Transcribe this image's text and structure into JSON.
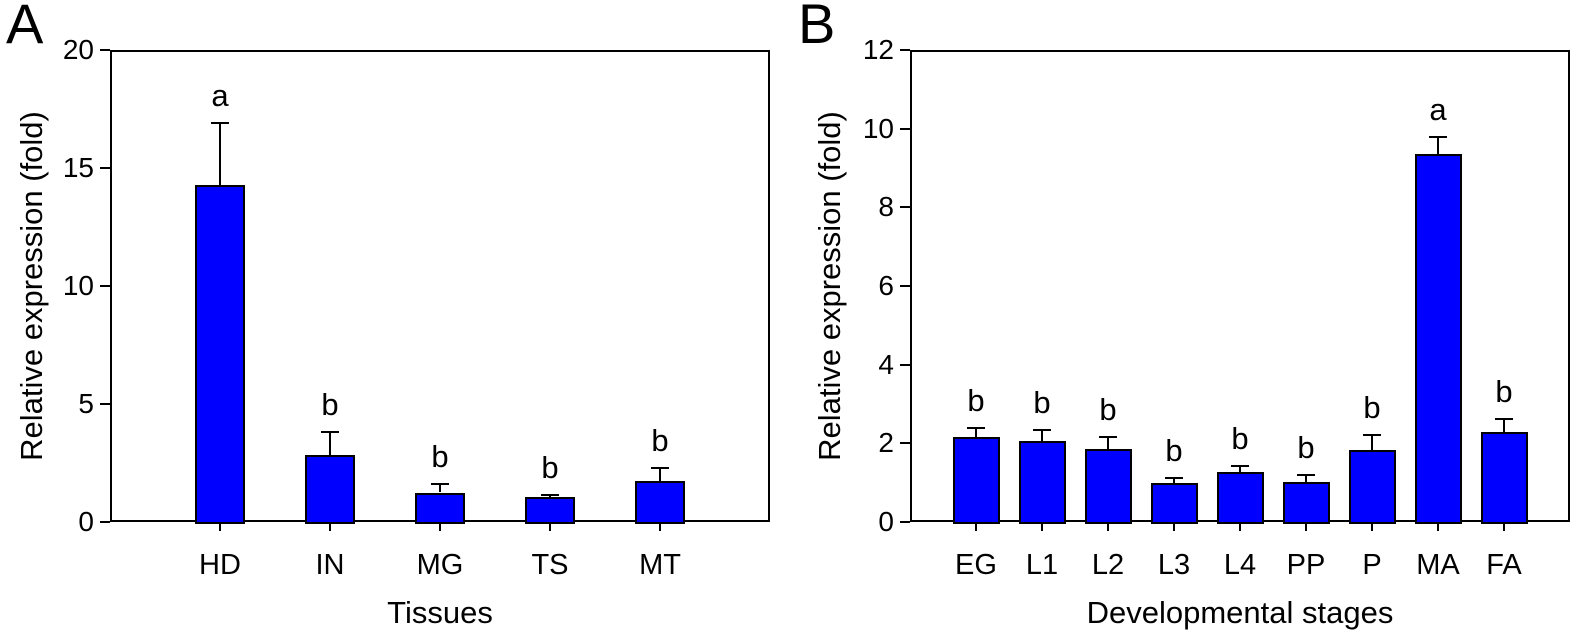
{
  "figure": {
    "background": "#ffffff",
    "bar_fill": "#0000ff",
    "bar_stroke": "#000000",
    "axis_color": "#000000",
    "text_color": "#000000"
  },
  "chart_data": [
    {
      "type": "bar",
      "panel_label": "A",
      "title": "",
      "xlabel": "Tissues",
      "ylabel": "Relative expression (fold)",
      "categories": [
        "HD",
        "IN",
        "MG",
        "TS",
        "MT"
      ],
      "values": [
        14.3,
        2.85,
        1.25,
        1.05,
        1.75
      ],
      "errors": [
        2.6,
        0.95,
        0.35,
        0.1,
        0.55
      ],
      "sig_letters": [
        "a",
        "b",
        "b",
        "b",
        "b"
      ],
      "ylim": [
        0,
        20
      ],
      "ytick_step": 5,
      "ytick_labels": [
        "0",
        "5",
        "10",
        "15",
        "20"
      ],
      "grid": false,
      "legend": null
    },
    {
      "type": "bar",
      "panel_label": "B",
      "title": "",
      "xlabel": "Developmental stages",
      "ylabel": "Relative expression (fold)",
      "categories": [
        "EG",
        "L1",
        "L2",
        "L3",
        "L4",
        "PP",
        "P",
        "MA",
        "FA"
      ],
      "values": [
        2.15,
        2.05,
        1.85,
        1.0,
        1.28,
        1.02,
        1.82,
        9.35,
        2.3
      ],
      "errors": [
        0.25,
        0.3,
        0.3,
        0.12,
        0.14,
        0.18,
        0.4,
        0.45,
        0.32
      ],
      "sig_letters": [
        "b",
        "b",
        "b",
        "b",
        "b",
        "b",
        "b",
        "a",
        "b"
      ],
      "ylim": [
        0,
        12
      ],
      "ytick_step": 2,
      "ytick_labels": [
        "0",
        "2",
        "4",
        "6",
        "8",
        "10",
        "12"
      ],
      "grid": false,
      "legend": null
    }
  ]
}
